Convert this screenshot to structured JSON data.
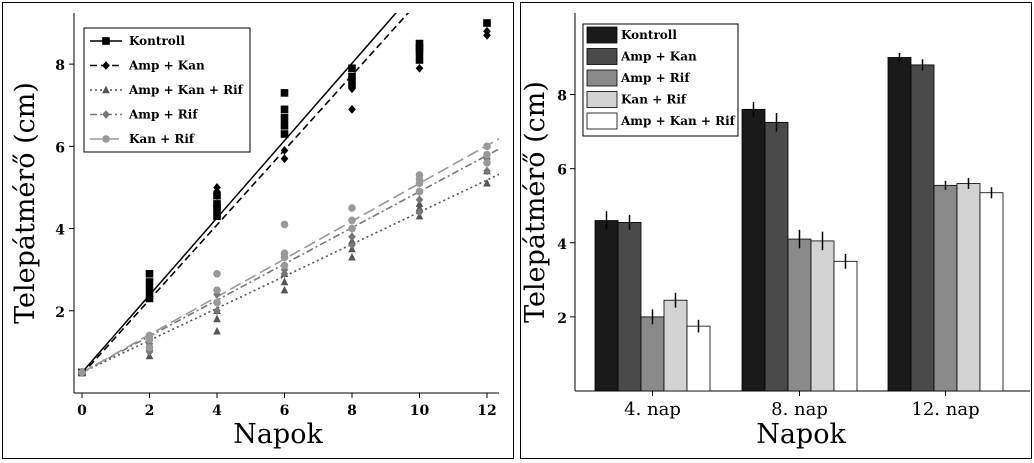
{
  "chart_data": [
    {
      "type": "scatter",
      "title": "",
      "xlabel": "Napok",
      "ylabel": "Telepátmérő (cm)",
      "xlim": [
        0,
        12
      ],
      "ylim": [
        0,
        9
      ],
      "xticks": [
        0,
        2,
        4,
        6,
        8,
        10,
        12
      ],
      "yticks": [
        2,
        4,
        6,
        8
      ],
      "grid": false,
      "legend_position": "top-left",
      "series": [
        {
          "name": "Kontroll",
          "marker": "square",
          "line": "solid",
          "color": "#000000",
          "x": [
            0,
            2,
            2,
            2,
            2,
            4,
            4,
            4,
            4,
            6,
            6,
            6,
            6,
            6,
            8,
            8,
            8,
            10,
            10,
            10,
            10,
            12
          ],
          "y": [
            0.5,
            2.3,
            2.5,
            2.7,
            2.9,
            4.3,
            4.5,
            4.6,
            4.8,
            6.3,
            6.5,
            6.7,
            6.9,
            7.3,
            7.5,
            7.7,
            7.9,
            8.1,
            8.3,
            8.4,
            8.5,
            9.0
          ],
          "fit": {
            "intercept": 0.5,
            "slope": 0.94
          }
        },
        {
          "name": "Amp + Kan",
          "marker": "diamond",
          "line": "dashed",
          "color": "#000000",
          "x": [
            0,
            2,
            2,
            4,
            4,
            4,
            4,
            6,
            6,
            6,
            8,
            8,
            8,
            10,
            10,
            12,
            12
          ],
          "y": [
            0.5,
            2.4,
            2.6,
            4.4,
            4.8,
            4.9,
            5.0,
            5.7,
            5.9,
            6.6,
            6.9,
            7.4,
            7.6,
            7.9,
            8.2,
            8.7,
            8.8
          ],
          "fit": {
            "intercept": 0.45,
            "slope": 0.91
          }
        },
        {
          "name": "Amp + Kan + Rif",
          "marker": "triangle",
          "line": "dotted",
          "color": "#555555",
          "x": [
            0,
            2,
            2,
            2,
            4,
            4,
            4,
            6,
            6,
            6,
            8,
            8,
            8,
            10,
            10,
            10,
            12,
            12
          ],
          "y": [
            0.5,
            0.9,
            1.1,
            1.2,
            1.5,
            1.8,
            2.0,
            2.5,
            2.7,
            2.9,
            3.3,
            3.5,
            3.7,
            4.3,
            4.5,
            4.6,
            5.1,
            5.4
          ],
          "fit": {
            "intercept": 0.5,
            "slope": 0.39
          }
        },
        {
          "name": "Amp + Rif",
          "marker": "diamond",
          "line": "dashdot",
          "color": "#777777",
          "x": [
            0,
            2,
            2,
            4,
            4,
            4,
            6,
            6,
            6,
            8,
            8,
            8,
            10,
            10,
            10,
            12,
            12
          ],
          "y": [
            0.5,
            1.0,
            1.2,
            2.0,
            2.2,
            2.4,
            2.9,
            3.0,
            3.3,
            3.6,
            3.8,
            4.0,
            4.4,
            4.7,
            4.9,
            5.4,
            5.7
          ],
          "fit": {
            "intercept": 0.5,
            "slope": 0.44
          }
        },
        {
          "name": "Kan + Rif",
          "marker": "circle",
          "line": "longdash",
          "color": "#999999",
          "x": [
            0,
            2,
            2,
            2,
            4,
            4,
            4,
            6,
            6,
            6,
            6,
            8,
            8,
            8,
            10,
            10,
            10,
            10,
            12,
            12,
            12
          ],
          "y": [
            0.5,
            1.1,
            1.3,
            1.4,
            2.2,
            2.5,
            2.9,
            3.1,
            3.3,
            3.4,
            4.1,
            4.0,
            4.2,
            4.5,
            4.9,
            5.1,
            5.2,
            5.3,
            5.6,
            5.8,
            6.0
          ],
          "fit": {
            "intercept": 0.5,
            "slope": 0.46
          }
        }
      ]
    },
    {
      "type": "bar",
      "title": "",
      "xlabel": "Napok",
      "ylabel": "Telepátmérő (cm)",
      "categories": [
        "4. nap",
        "8. nap",
        "12. nap"
      ],
      "ylim": [
        0,
        10.2
      ],
      "yticks": [
        2,
        4,
        6,
        8
      ],
      "grid": false,
      "legend_position": "top-left",
      "series": [
        {
          "name": "Kontroll",
          "color": "#1a1a1a",
          "values": [
            4.6,
            7.6,
            9.0
          ],
          "errors": [
            0.25,
            0.2,
            0.12
          ]
        },
        {
          "name": "Amp + Kan",
          "color": "#4a4a4a",
          "values": [
            4.55,
            7.25,
            8.8
          ],
          "errors": [
            0.2,
            0.25,
            0.15
          ]
        },
        {
          "name": "Amp + Rif",
          "color": "#8a8a8a",
          "values": [
            2.0,
            4.1,
            5.55
          ],
          "errors": [
            0.2,
            0.25,
            0.12
          ]
        },
        {
          "name": "Kan + Rif",
          "color": "#d3d3d3",
          "values": [
            2.45,
            4.05,
            5.6
          ],
          "errors": [
            0.2,
            0.25,
            0.15
          ]
        },
        {
          "name": "Amp + Kan + Rif",
          "color": "#ffffff",
          "values": [
            1.75,
            3.5,
            5.35
          ],
          "errors": [
            0.17,
            0.2,
            0.15
          ]
        }
      ]
    }
  ]
}
